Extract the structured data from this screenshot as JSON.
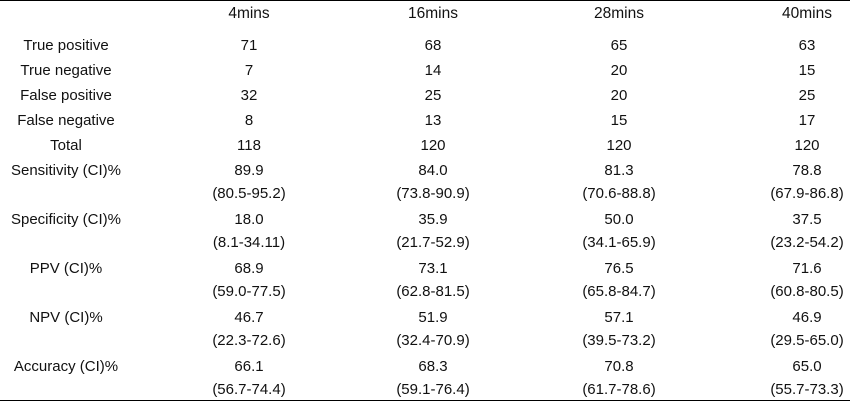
{
  "table": {
    "columns": [
      "4mins",
      "16mins",
      "28mins",
      "40mins"
    ],
    "rows": [
      {
        "label": "True positive",
        "cells": [
          [
            "71"
          ],
          [
            "68"
          ],
          [
            "65"
          ],
          [
            "63"
          ]
        ]
      },
      {
        "label": "True negative",
        "cells": [
          [
            "7"
          ],
          [
            "14"
          ],
          [
            "20"
          ],
          [
            "15"
          ]
        ]
      },
      {
        "label": "False positive",
        "cells": [
          [
            "32"
          ],
          [
            "25"
          ],
          [
            "20"
          ],
          [
            "25"
          ]
        ]
      },
      {
        "label": "False negative",
        "cells": [
          [
            "8"
          ],
          [
            "13"
          ],
          [
            "15"
          ],
          [
            "17"
          ]
        ]
      },
      {
        "label": "Total",
        "cells": [
          [
            "118"
          ],
          [
            "120"
          ],
          [
            "120"
          ],
          [
            "120"
          ]
        ]
      },
      {
        "label": "Sensitivity (CI)%",
        "cells": [
          [
            "89.9",
            "(80.5-95.2)"
          ],
          [
            "84.0",
            "(73.8-90.9)"
          ],
          [
            "81.3",
            "(70.6-88.8)"
          ],
          [
            "78.8",
            "(67.9-86.8)"
          ]
        ]
      },
      {
        "label": "Specificity (CI)%",
        "cells": [
          [
            "18.0",
            "(8.1-34.11)"
          ],
          [
            "35.9",
            "(21.7-52.9)"
          ],
          [
            "50.0",
            "(34.1-65.9)"
          ],
          [
            "37.5",
            "(23.2-54.2)"
          ]
        ]
      },
      {
        "label": "PPV (CI)%",
        "cells": [
          [
            "68.9",
            "(59.0-77.5)"
          ],
          [
            "73.1",
            "(62.8-81.5)"
          ],
          [
            "76.5",
            "(65.8-84.7)"
          ],
          [
            "71.6",
            "(60.8-80.5)"
          ]
        ]
      },
      {
        "label": "NPV (CI)%",
        "cells": [
          [
            "46.7",
            "(22.3-72.6)"
          ],
          [
            "51.9",
            "(32.4-70.9)"
          ],
          [
            "57.1",
            "(39.5-73.2)"
          ],
          [
            "46.9",
            "(29.5-65.0)"
          ]
        ]
      },
      {
        "label": "Accuracy (CI)%",
        "cells": [
          [
            "66.1",
            "(56.7-74.4)"
          ],
          [
            "68.3",
            "(59.1-76.4)"
          ],
          [
            "70.8",
            "(61.7-78.6)"
          ],
          [
            "65.0",
            "(55.7-73.3)"
          ]
        ]
      }
    ]
  }
}
